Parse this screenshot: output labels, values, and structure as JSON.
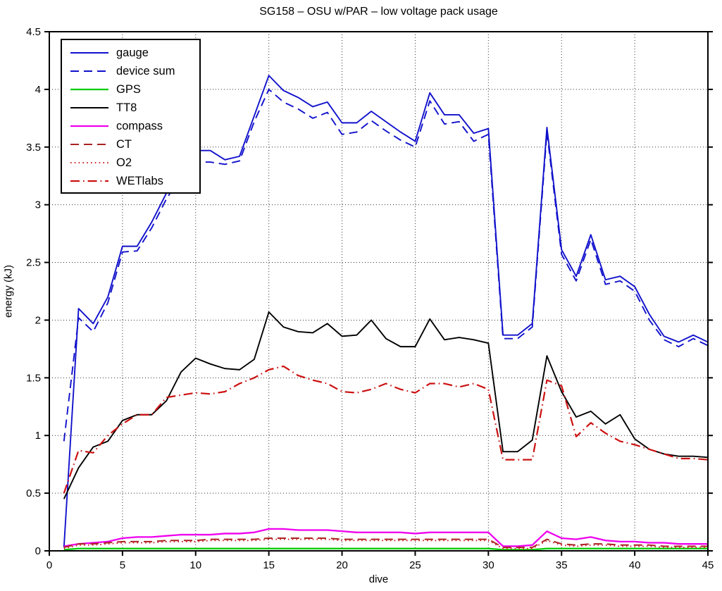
{
  "chart_data": {
    "type": "line",
    "title": "SG158 – OSU w/PAR – low voltage pack usage",
    "xlabel": "dive",
    "ylabel": "energy (kJ)",
    "xlim": [
      0,
      45
    ],
    "ylim": [
      0,
      4.5
    ],
    "xticks": [
      0,
      5,
      10,
      15,
      20,
      25,
      30,
      35,
      40,
      45
    ],
    "xtick_labels": [
      "0",
      "5",
      "10",
      "15",
      "20",
      "25",
      "30",
      "35",
      "40",
      "45"
    ],
    "yticks": [
      0,
      0.5,
      1,
      1.5,
      2,
      2.5,
      3,
      3.5,
      4,
      4.5
    ],
    "ytick_labels": [
      "0",
      "0.5",
      "1",
      "1.5",
      "2",
      "2.5",
      "3",
      "3.5",
      "4",
      "4.5"
    ],
    "grid": true,
    "legend_position": "top-left",
    "x": [
      1,
      2,
      3,
      4,
      5,
      6,
      7,
      8,
      9,
      10,
      11,
      12,
      13,
      14,
      15,
      16,
      17,
      18,
      19,
      20,
      21,
      22,
      23,
      24,
      25,
      26,
      27,
      28,
      29,
      30,
      31,
      32,
      33,
      34,
      35,
      36,
      37,
      38,
      39,
      40,
      41,
      42,
      43,
      44,
      45
    ],
    "series": [
      {
        "name": "gauge",
        "color": "#1111CC",
        "style": "solid",
        "width": 1.9,
        "values": [
          0.03,
          2.1,
          1.97,
          2.2,
          2.64,
          2.64,
          2.85,
          3.1,
          3.3,
          3.47,
          3.47,
          3.39,
          3.42,
          3.77,
          4.12,
          3.99,
          3.93,
          3.85,
          3.89,
          3.71,
          3.71,
          3.81,
          3.72,
          3.63,
          3.55,
          3.97,
          3.78,
          3.78,
          3.62,
          3.66,
          1.87,
          1.87,
          1.97,
          3.67,
          2.61,
          2.38,
          2.74,
          2.35,
          2.38,
          2.29,
          2.05,
          1.86,
          1.81,
          1.87,
          1.81
        ]
      },
      {
        "name": "device sum",
        "color": "#1111CC",
        "style": "dashed",
        "width": 1.9,
        "values": [
          0.95,
          2.02,
          1.9,
          2.15,
          2.59,
          2.6,
          2.8,
          3.05,
          3.25,
          3.37,
          3.37,
          3.35,
          3.38,
          3.72,
          4.0,
          3.89,
          3.83,
          3.75,
          3.8,
          3.61,
          3.63,
          3.73,
          3.64,
          3.56,
          3.5,
          3.9,
          3.7,
          3.72,
          3.55,
          3.61,
          1.84,
          1.84,
          1.94,
          3.63,
          2.57,
          2.34,
          2.7,
          2.31,
          2.34,
          2.25,
          2.0,
          1.83,
          1.77,
          1.84,
          1.78
        ]
      },
      {
        "name": "GPS",
        "color": "#00CC00",
        "style": "solid",
        "width": 2.3,
        "values": [
          0.01,
          0.02,
          0.02,
          0.02,
          0.02,
          0.02,
          0.02,
          0.02,
          0.02,
          0.02,
          0.02,
          0.02,
          0.02,
          0.02,
          0.02,
          0.02,
          0.02,
          0.02,
          0.02,
          0.02,
          0.02,
          0.02,
          0.02,
          0.02,
          0.02,
          0.02,
          0.02,
          0.02,
          0.02,
          0.02,
          0.01,
          0.01,
          0.01,
          0.02,
          0.02,
          0.02,
          0.02,
          0.02,
          0.02,
          0.02,
          0.02,
          0.02,
          0.02,
          0.02,
          0.02
        ]
      },
      {
        "name": "TT8",
        "color": "#000000",
        "style": "solid",
        "width": 1.9,
        "values": [
          0.45,
          0.72,
          0.9,
          0.95,
          1.13,
          1.18,
          1.18,
          1.3,
          1.55,
          1.67,
          1.62,
          1.58,
          1.57,
          1.66,
          2.07,
          1.94,
          1.9,
          1.89,
          1.97,
          1.86,
          1.87,
          2.0,
          1.84,
          1.77,
          1.77,
          2.01,
          1.83,
          1.85,
          1.83,
          1.8,
          0.86,
          0.86,
          0.96,
          1.69,
          1.38,
          1.16,
          1.21,
          1.1,
          1.18,
          0.97,
          0.88,
          0.84,
          0.82,
          0.82,
          0.81
        ]
      },
      {
        "name": "compass",
        "color": "#EE00EE",
        "style": "solid",
        "width": 2.3,
        "values": [
          0.04,
          0.06,
          0.07,
          0.08,
          0.11,
          0.12,
          0.12,
          0.13,
          0.14,
          0.14,
          0.14,
          0.15,
          0.15,
          0.16,
          0.19,
          0.19,
          0.18,
          0.18,
          0.18,
          0.17,
          0.16,
          0.16,
          0.16,
          0.16,
          0.15,
          0.16,
          0.16,
          0.16,
          0.16,
          0.16,
          0.04,
          0.04,
          0.05,
          0.17,
          0.11,
          0.1,
          0.12,
          0.09,
          0.08,
          0.08,
          0.07,
          0.07,
          0.06,
          0.06,
          0.06
        ]
      },
      {
        "name": "CT",
        "color": "#AA2222",
        "style": "dashed",
        "width": 2.0,
        "values": [
          0.03,
          0.06,
          0.06,
          0.07,
          0.08,
          0.08,
          0.08,
          0.09,
          0.09,
          0.09,
          0.1,
          0.1,
          0.1,
          0.1,
          0.11,
          0.11,
          0.11,
          0.11,
          0.11,
          0.1,
          0.1,
          0.1,
          0.1,
          0.1,
          0.1,
          0.1,
          0.1,
          0.1,
          0.1,
          0.1,
          0.03,
          0.03,
          0.03,
          0.1,
          0.06,
          0.05,
          0.06,
          0.06,
          0.05,
          0.05,
          0.05,
          0.04,
          0.04,
          0.04,
          0.04
        ]
      },
      {
        "name": "O2",
        "color": "#CC2222",
        "style": "dotted",
        "width": 2.0,
        "values": [
          0.02,
          0.05,
          0.05,
          0.06,
          0.07,
          0.07,
          0.07,
          0.08,
          0.08,
          0.08,
          0.09,
          0.09,
          0.09,
          0.09,
          0.1,
          0.1,
          0.1,
          0.1,
          0.1,
          0.09,
          0.09,
          0.09,
          0.09,
          0.09,
          0.09,
          0.09,
          0.09,
          0.09,
          0.09,
          0.09,
          0.02,
          0.02,
          0.02,
          0.09,
          0.05,
          0.04,
          0.05,
          0.05,
          0.04,
          0.04,
          0.04,
          0.03,
          0.03,
          0.03,
          0.03
        ]
      },
      {
        "name": "WETlabs",
        "color": "#CC1111",
        "style": "dashdot",
        "width": 2.2,
        "values": [
          0.5,
          0.87,
          0.85,
          1.0,
          1.1,
          1.18,
          1.18,
          1.33,
          1.35,
          1.37,
          1.36,
          1.38,
          1.45,
          1.5,
          1.57,
          1.6,
          1.52,
          1.48,
          1.45,
          1.38,
          1.37,
          1.4,
          1.45,
          1.4,
          1.37,
          1.45,
          1.45,
          1.42,
          1.45,
          1.4,
          0.79,
          0.79,
          0.79,
          1.48,
          1.43,
          0.99,
          1.11,
          1.02,
          0.95,
          0.92,
          0.88,
          0.84,
          0.8,
          0.8,
          0.79
        ]
      }
    ]
  }
}
